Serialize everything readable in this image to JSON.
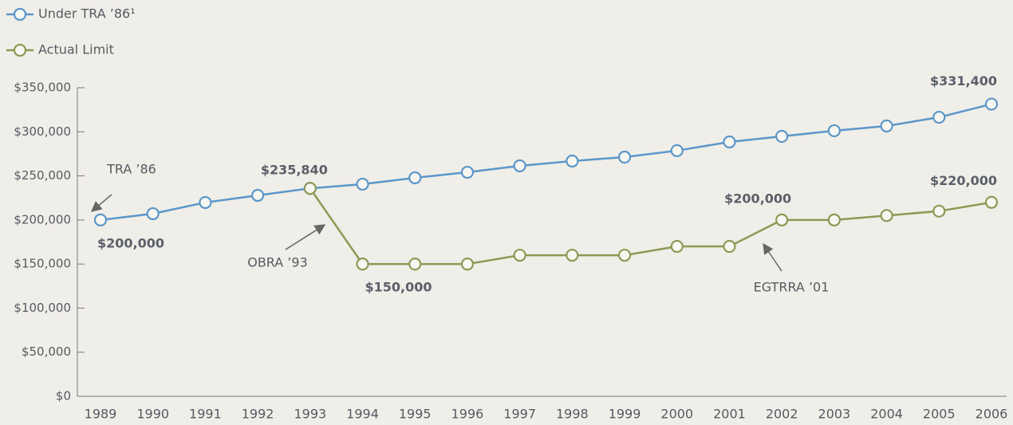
{
  "chart_data": {
    "type": "line",
    "categories": [
      "1989",
      "1990",
      "1991",
      "1992",
      "1993",
      "1994",
      "1995",
      "1996",
      "1997",
      "1998",
      "1999",
      "2000",
      "2001",
      "2002",
      "2003",
      "2004",
      "2005",
      "2006"
    ],
    "series": [
      {
        "name": "Under TRA ’86¹",
        "color": "#5b97c9",
        "values": [
          200000,
          207100,
          219800,
          227900,
          235840,
          240600,
          247800,
          254100,
          261400,
          266800,
          271300,
          278600,
          288500,
          294800,
          301200,
          306600,
          316500,
          331400
        ],
        "value_labels": [
          "$200,000",
          null,
          null,
          null,
          "$235,840",
          null,
          null,
          null,
          null,
          null,
          null,
          null,
          null,
          null,
          null,
          null,
          null,
          "$331,400"
        ]
      },
      {
        "name": "Actual Limit",
        "color": "#8c9a55",
        "values": [
          null,
          null,
          null,
          null,
          235840,
          150000,
          150000,
          150000,
          160000,
          160000,
          160000,
          170000,
          170000,
          200000,
          200000,
          205000,
          210000,
          220000
        ],
        "value_labels": [
          null,
          null,
          null,
          null,
          null,
          "$150,000",
          null,
          null,
          null,
          null,
          null,
          null,
          null,
          "$200,000",
          null,
          null,
          null,
          "$220,000"
        ]
      }
    ],
    "annotations": [
      "TRA ’86",
      "OBRA ’93",
      "EGTRRA ’01"
    ],
    "ylim": [
      0,
      350000
    ],
    "yticks": [
      {
        "value": 0,
        "label": "$0"
      },
      {
        "value": 50000,
        "label": "$50,000"
      },
      {
        "value": 100000,
        "label": "$100,000"
      },
      {
        "value": 150000,
        "label": "$150,000"
      },
      {
        "value": 200000,
        "label": "$200,000"
      },
      {
        "value": 250000,
        "label": "$250,000"
      },
      {
        "value": 300000,
        "label": "$300,000"
      },
      {
        "value": 350000,
        "label": "$350,000"
      }
    ],
    "legend": "top-left"
  }
}
